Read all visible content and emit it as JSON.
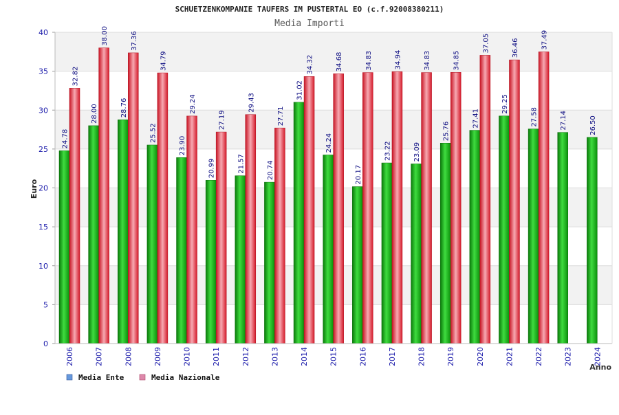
{
  "chart_data": {
    "type": "bar",
    "title": "SCHUETZENKOMPANIE TAUFERS IM PUSTERTAL EO (c.f.92008380211)",
    "subtitle": "Media Importi",
    "xlabel": "Anno",
    "ylabel": "Euro",
    "ylim": [
      0,
      40
    ],
    "yticks": [
      0,
      5,
      10,
      15,
      20,
      25,
      30,
      35,
      40
    ],
    "grid": true,
    "legend_position": "bottom-left",
    "categories": [
      "2006",
      "2007",
      "2008",
      "2009",
      "2010",
      "2011",
      "2012",
      "2013",
      "2014",
      "2015",
      "2016",
      "2017",
      "2018",
      "2019",
      "2020",
      "2021",
      "2022",
      "2023",
      "2024"
    ],
    "series": [
      {
        "name": "Media Ente",
        "color": "#22bb22",
        "legend_color": "#6699dd",
        "values": [
          24.78,
          28.0,
          28.76,
          25.52,
          23.9,
          20.99,
          21.57,
          20.74,
          31.02,
          24.24,
          20.17,
          23.22,
          23.09,
          25.76,
          27.41,
          29.25,
          27.58,
          27.14,
          26.5
        ],
        "labels": [
          "24.78",
          "28.00",
          "28.76",
          "25.52",
          "23.90",
          "20.99",
          "21.57",
          "20.74",
          "31.02",
          "24.24",
          "20.17",
          "23.22",
          "23.09",
          "25.76",
          "27.41",
          "29.25",
          "27.58",
          "27.14",
          "26.50"
        ]
      },
      {
        "name": "Media Nazionale",
        "color": "#ee3344",
        "legend_color": "#dd88aa",
        "values": [
          32.82,
          38.0,
          37.36,
          34.79,
          29.24,
          27.19,
          29.43,
          27.71,
          34.32,
          34.68,
          34.83,
          34.94,
          34.83,
          34.85,
          37.05,
          36.46,
          37.49,
          null,
          null
        ],
        "labels": [
          "32.82",
          "38.00",
          "37.36",
          "34.79",
          "29.24",
          "27.19",
          "29.43",
          "27.71",
          "34.32",
          "34.68",
          "34.83",
          "34.94",
          "34.83",
          "34.85",
          "37.05",
          "36.46",
          "37.49",
          "",
          ""
        ]
      }
    ]
  }
}
